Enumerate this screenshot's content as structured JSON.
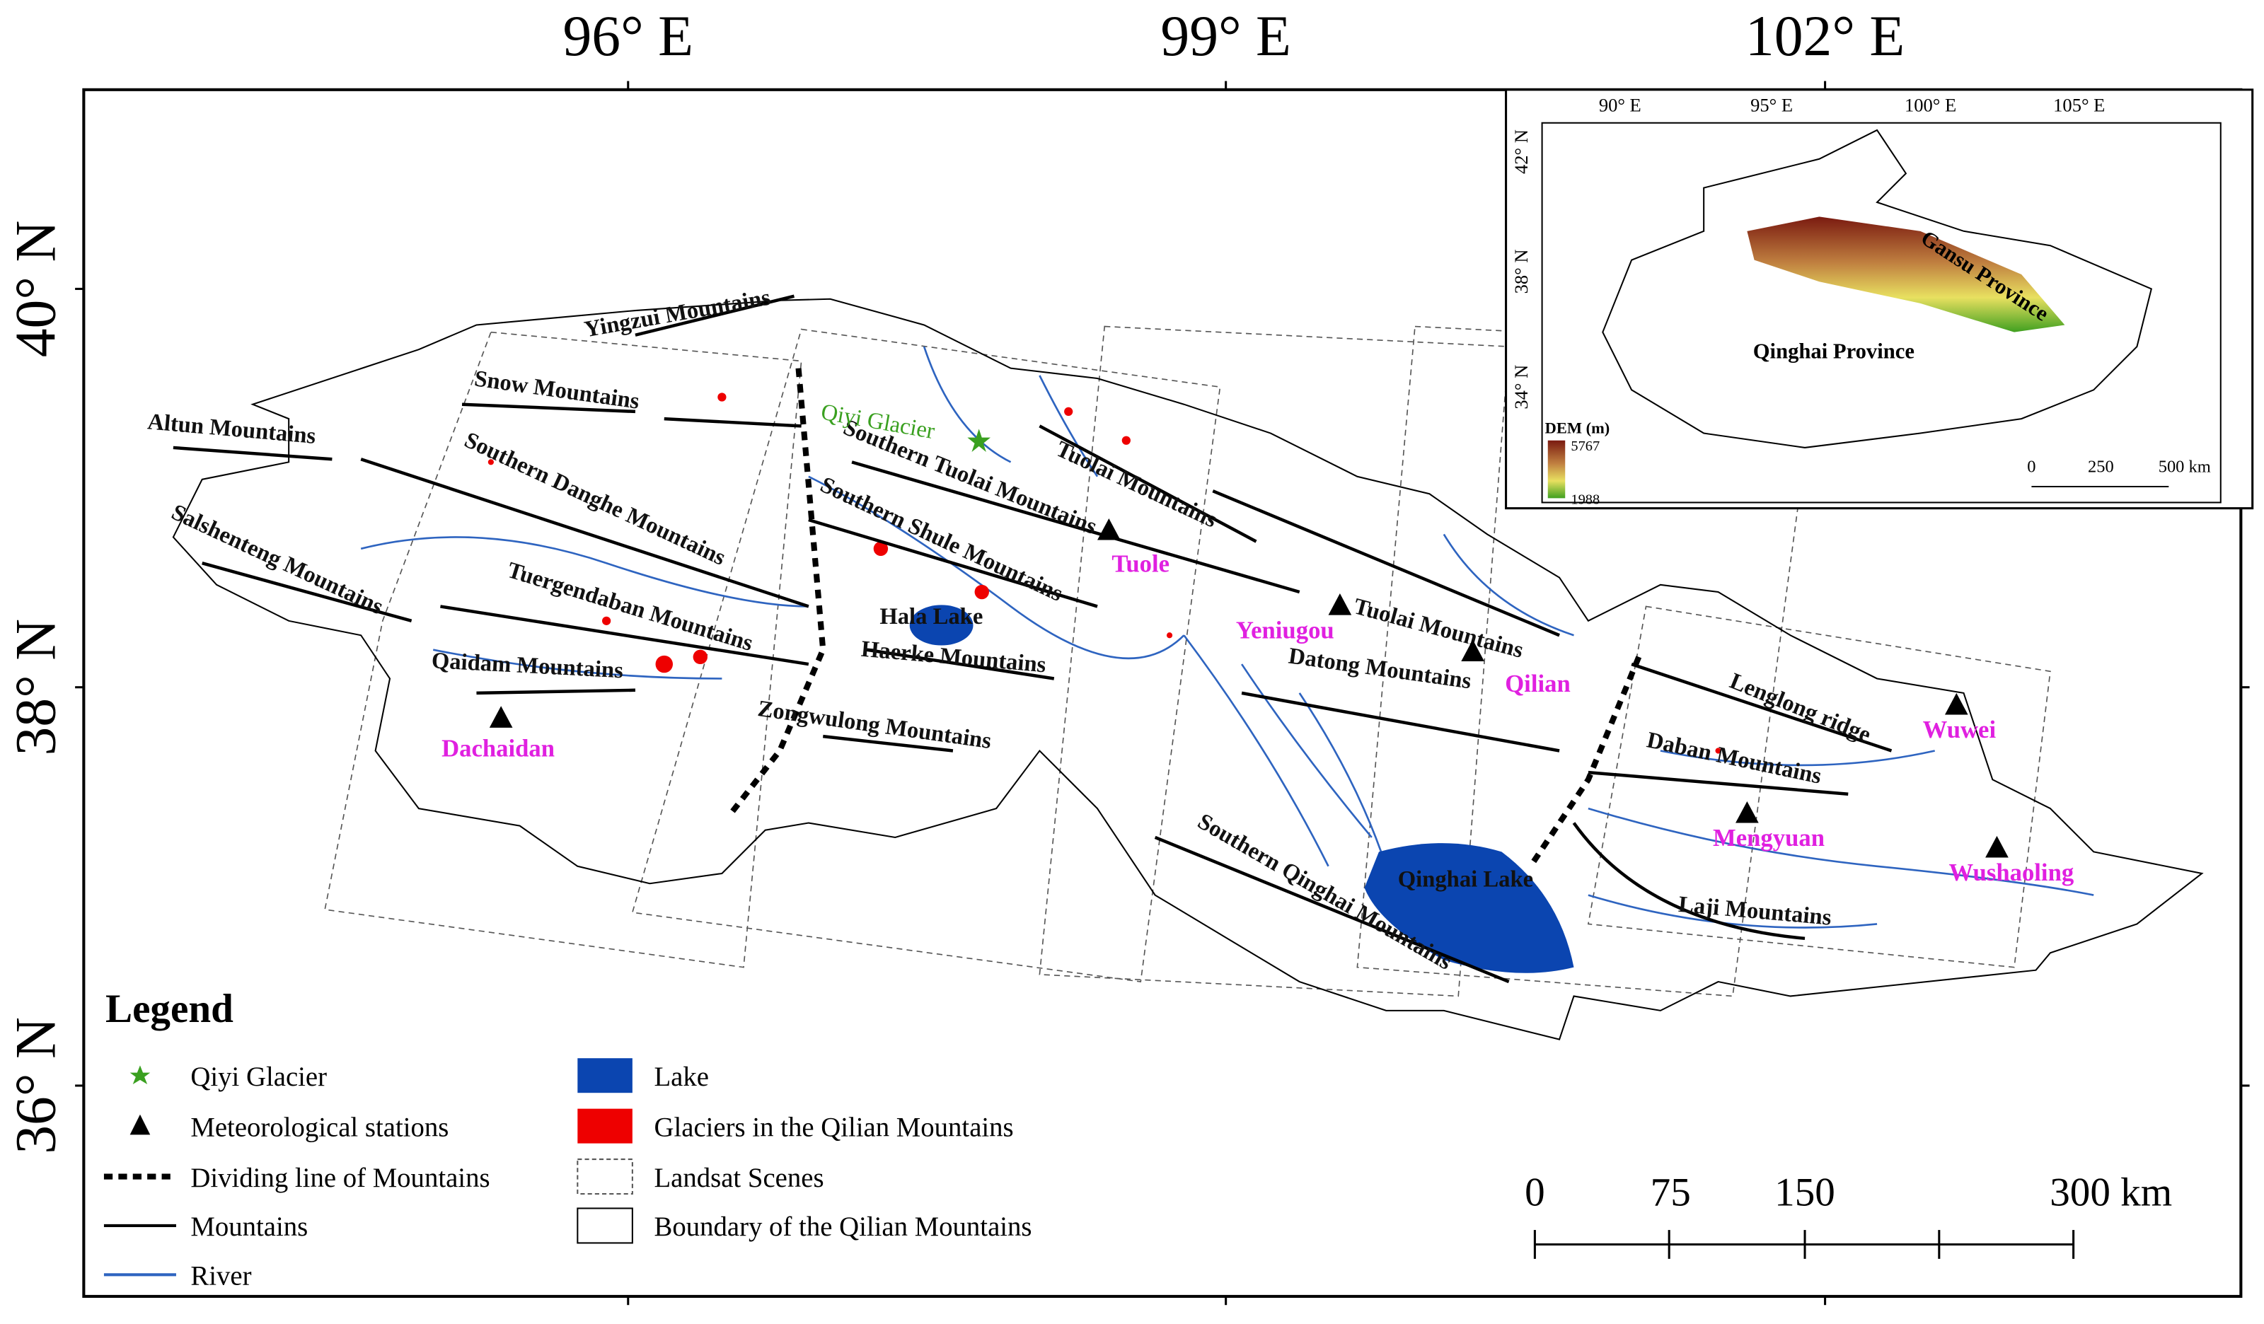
{
  "axes": {
    "top": [
      "96° E",
      "99° E",
      "102° E"
    ],
    "left": [
      "40° N",
      "38° N",
      "36° N"
    ]
  },
  "mountains": [
    "Yingzui Mountains",
    "Snow Mountains",
    "Altun Mountains",
    "Southern Danghe Mountains",
    "Salshenteng Mountains",
    "Tuergendaban Mountains",
    "Qaidam Mountains",
    "Southern Tuolai Mountains",
    "Tuolai Mountains",
    "Southern Shule Mountains",
    "Haerke Mountains",
    "Zongwulong Mountains",
    "Tuolai Mountains",
    "Datong Mountains",
    "Lenglong ridge",
    "Daban Mountains",
    "Southern Qinghai Mountains",
    "Laji Mountains"
  ],
  "lakes": [
    "Hala Lake",
    "Qinghai Lake"
  ],
  "glacier": "Qiyi Glacier",
  "stations": [
    "Dachaidan",
    "Tuole",
    "Yeniugou",
    "Qilian",
    "Wuwei",
    "Mengyuan",
    "Wushaoling"
  ],
  "legend": {
    "title": "Legend",
    "items": [
      "Qiyi Glacier",
      "Meteorological stations",
      "Dividing line of Mountains",
      "Mountains",
      "River",
      "Lake",
      "Glaciers in the Qilian Mountains",
      "Landsat Scenes",
      "Boundary of the Qilian Mountains"
    ]
  },
  "scale_bar": [
    "0",
    "75",
    "150",
    "300 km"
  ],
  "inset": {
    "lon_labels": [
      "90° E",
      "95° E",
      "100° E",
      "105° E"
    ],
    "lat_labels": [
      "42° N",
      "38° N",
      "34° N"
    ],
    "provinces": [
      "Gansu Province",
      "Qinghai Province"
    ],
    "dem_title": "DEM (m)",
    "dem_max": "5767",
    "dem_min": "1988",
    "scale": [
      "0",
      "250",
      "500 km"
    ]
  }
}
